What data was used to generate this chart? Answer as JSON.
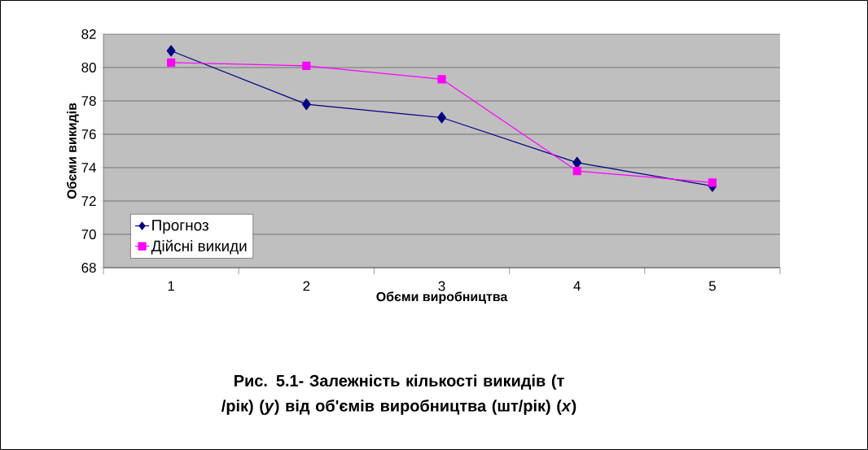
{
  "chart_data": {
    "type": "line",
    "title": "Рис. 5.1- Залежність кількості викидів (т /рік) (*y*) від об'ємів виробництва (шт/рік) (*x*)",
    "xlabel": "Обєми виробництва",
    "ylabel": "Обєми викидів",
    "categories": [
      "1",
      "2",
      "3",
      "4",
      "5"
    ],
    "series": [
      {
        "name": "Прогноз",
        "color": "#000080",
        "marker": "diamond",
        "values": [
          81.0,
          77.8,
          77.0,
          74.3,
          72.9
        ]
      },
      {
        "name": "Дійсні викиди",
        "color": "#ff00ff",
        "marker": "square",
        "values": [
          80.3,
          80.1,
          79.3,
          73.8,
          73.1
        ]
      }
    ],
    "ylim": [
      68,
      82
    ],
    "yticks": [
      68,
      70,
      72,
      74,
      76,
      78,
      80,
      82
    ],
    "grid": "y",
    "legend": "bottom left",
    "line_style": "solid"
  }
}
